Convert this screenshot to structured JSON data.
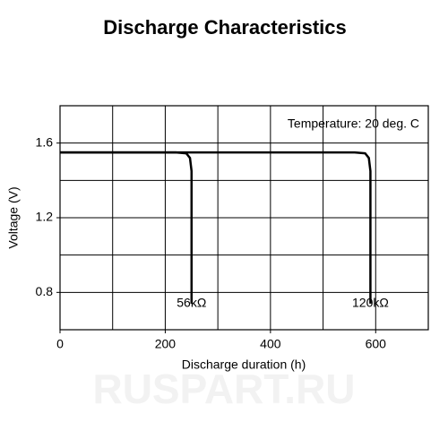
{
  "chart_data": {
    "type": "line",
    "title": "Discharge Characteristics",
    "xlabel": "Discharge duration (h)",
    "ylabel": "Voltage (V)",
    "annotation": "Temperature: 20 deg. C",
    "watermark": "RUSPART.RU",
    "xlim": [
      0,
      700
    ],
    "ylim": [
      0.6,
      1.8
    ],
    "xticks": [
      0,
      200,
      400,
      600
    ],
    "yticks": [
      0.8,
      1.2,
      1.6
    ],
    "xgrid": [
      100,
      200,
      300,
      400,
      500,
      600
    ],
    "ygrid": [
      0.8,
      1.0,
      1.2,
      1.4,
      1.6
    ],
    "series": [
      {
        "name": "56kΩ",
        "color": "#000000",
        "x": [
          0,
          220,
          240,
          247,
          250,
          250
        ],
        "values": [
          1.55,
          1.55,
          1.545,
          1.52,
          1.45,
          0.74
        ]
      },
      {
        "name": "120kΩ",
        "color": "#000000",
        "x": [
          0,
          560,
          580,
          587,
          590,
          590
        ],
        "values": [
          1.55,
          1.55,
          1.545,
          1.52,
          1.45,
          0.74
        ]
      }
    ]
  }
}
